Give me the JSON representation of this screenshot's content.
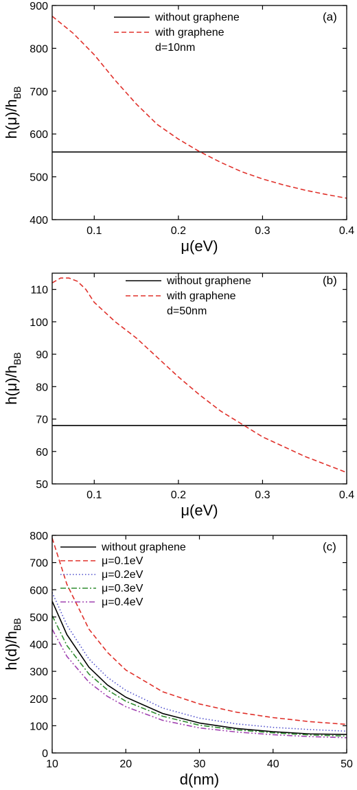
{
  "chart_data": [
    {
      "panel": "a",
      "type": "line",
      "tag": "(a)",
      "xlabel": "μ(eV)",
      "ylabel": "h(μ)/h",
      "ylabel_sub": "BB",
      "xlim": [
        0.05,
        0.4
      ],
      "ylim": [
        400,
        900
      ],
      "xticks": [
        0.1,
        0.2,
        0.3,
        0.4
      ],
      "xtick_labels": [
        "0.1",
        "0.2",
        "0.3",
        "0.4"
      ],
      "yticks": [
        400,
        500,
        600,
        700,
        800,
        900
      ],
      "ytick_labels": [
        "400",
        "500",
        "600",
        "700",
        "800",
        "900"
      ],
      "legend": {
        "position": "top-right",
        "extra_text": "d=10nm"
      },
      "series": [
        {
          "name": "without graphene",
          "color": "#000000",
          "dash": "solid",
          "x": [
            0.05,
            0.4
          ],
          "y": [
            558,
            558
          ]
        },
        {
          "name": "with graphene",
          "color": "#e0302a",
          "dash": "dashed",
          "x": [
            0.05,
            0.075,
            0.1,
            0.125,
            0.15,
            0.175,
            0.2,
            0.225,
            0.25,
            0.275,
            0.3,
            0.325,
            0.35,
            0.375,
            0.4
          ],
          "y": [
            875,
            835,
            785,
            725,
            670,
            622,
            588,
            559,
            534,
            512,
            495,
            481,
            469,
            459,
            450
          ]
        }
      ]
    },
    {
      "panel": "b",
      "type": "line",
      "tag": "(b)",
      "xlabel": "μ(eV)",
      "ylabel": "h(μ)/h",
      "ylabel_sub": "BB",
      "xlim": [
        0.05,
        0.4
      ],
      "ylim": [
        50,
        115
      ],
      "xticks": [
        0.1,
        0.2,
        0.3,
        0.4
      ],
      "xtick_labels": [
        "0.1",
        "0.2",
        "0.3",
        "0.4"
      ],
      "yticks": [
        50,
        60,
        70,
        80,
        90,
        100,
        110
      ],
      "ytick_labels": [
        "50",
        "60",
        "70",
        "80",
        "90",
        "100",
        "110"
      ],
      "legend": {
        "position": "top-right",
        "extra_text": "d=50nm"
      },
      "series": [
        {
          "name": "without graphene",
          "color": "#000000",
          "dash": "solid",
          "x": [
            0.05,
            0.4
          ],
          "y": [
            68,
            68
          ]
        },
        {
          "name": "with graphene",
          "color": "#e0302a",
          "dash": "dashed",
          "x": [
            0.05,
            0.06,
            0.07,
            0.08,
            0.09,
            0.1,
            0.125,
            0.15,
            0.175,
            0.2,
            0.225,
            0.25,
            0.275,
            0.3,
            0.325,
            0.35,
            0.375,
            0.4
          ],
          "y": [
            112,
            113.5,
            113.5,
            112.5,
            110,
            106,
            100,
            95,
            89,
            83,
            77.5,
            72.5,
            68.5,
            64.5,
            61.5,
            58.5,
            56,
            53.5
          ]
        }
      ]
    },
    {
      "panel": "c",
      "type": "line",
      "tag": "(c)",
      "xlabel": "d(nm)",
      "ylabel": "h(d)/h",
      "ylabel_sub": "BB",
      "xlim": [
        10,
        50
      ],
      "ylim": [
        0,
        800
      ],
      "xticks": [
        10,
        20,
        30,
        40,
        50
      ],
      "xtick_labels": [
        "10",
        "20",
        "30",
        "40",
        "50"
      ],
      "yticks": [
        0,
        100,
        200,
        300,
        400,
        500,
        600,
        700,
        800
      ],
      "ytick_labels": [
        "0",
        "100",
        "200",
        "300",
        "400",
        "500",
        "600",
        "700",
        "800"
      ],
      "legend": {
        "position": "top-center"
      },
      "series": [
        {
          "name": "without graphene",
          "color": "#000000",
          "dash": "solid",
          "x": [
            10,
            12,
            15,
            17.5,
            20,
            25,
            30,
            35,
            40,
            45,
            50
          ],
          "y": [
            558,
            435,
            315,
            250,
            205,
            145,
            110,
            90,
            78,
            70,
            68
          ]
        },
        {
          "name": "μ=0.1eV",
          "color": "#e0302a",
          "dash": "dashed",
          "x": [
            10,
            12,
            15,
            17.5,
            20,
            25,
            30,
            35,
            40,
            45,
            50
          ],
          "y": [
            790,
            620,
            455,
            370,
            305,
            225,
            180,
            150,
            130,
            115,
            105
          ]
        },
        {
          "name": "μ=0.2eV",
          "color": "#4d4dcc",
          "dash": "dotted",
          "x": [
            10,
            12,
            15,
            17.5,
            20,
            25,
            30,
            35,
            40,
            45,
            50
          ],
          "y": [
            590,
            470,
            345,
            278,
            230,
            165,
            128,
            107,
            94,
            86,
            80
          ]
        },
        {
          "name": "μ=0.3eV",
          "color": "#2e8b2e",
          "dash": "dashdot",
          "x": [
            10,
            12,
            15,
            17.5,
            20,
            25,
            30,
            35,
            40,
            45,
            50
          ],
          "y": [
            505,
            395,
            290,
            232,
            190,
            135,
            102,
            85,
            74,
            66,
            62
          ]
        },
        {
          "name": "μ=0.4eV",
          "color": "#a040b0",
          "dash": "dashdotdot",
          "x": [
            10,
            12,
            15,
            17.5,
            20,
            25,
            30,
            35,
            40,
            45,
            50
          ],
          "y": [
            455,
            355,
            260,
            208,
            170,
            120,
            92,
            77,
            67,
            60,
            56
          ]
        }
      ]
    }
  ]
}
